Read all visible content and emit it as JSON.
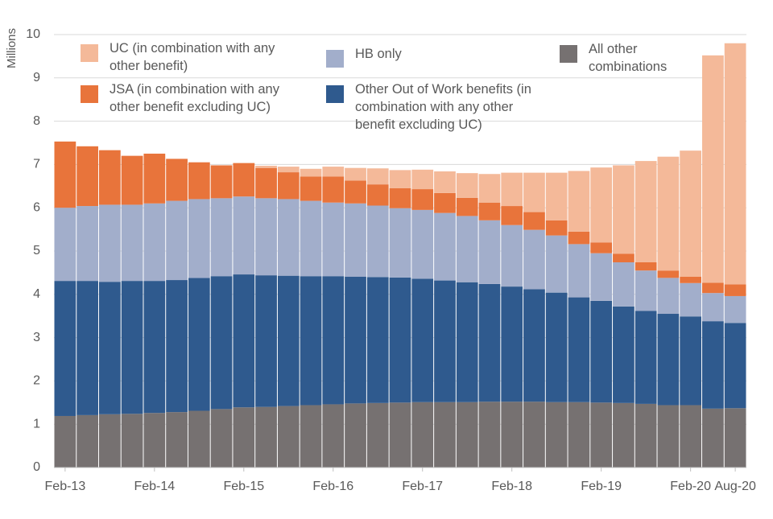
{
  "chart_data": {
    "type": "stacked-bar",
    "y_label": "Millions",
    "categories": [
      "Feb-13",
      null,
      null,
      null,
      "Feb-14",
      null,
      null,
      null,
      "Feb-15",
      null,
      null,
      null,
      "Feb-16",
      null,
      null,
      null,
      "Feb-17",
      null,
      null,
      null,
      "Feb-18",
      null,
      null,
      null,
      "Feb-19",
      null,
      null,
      null,
      "Feb-20",
      null,
      "Aug-20"
    ],
    "series": [
      {
        "name": "All other combinations",
        "color": "#767171",
        "values": [
          1.19,
          1.21,
          1.23,
          1.24,
          1.26,
          1.28,
          1.31,
          1.35,
          1.39,
          1.4,
          1.42,
          1.44,
          1.46,
          1.48,
          1.49,
          1.5,
          1.51,
          1.51,
          1.51,
          1.52,
          1.52,
          1.52,
          1.51,
          1.51,
          1.5,
          1.49,
          1.47,
          1.44,
          1.44,
          1.36,
          1.37
        ]
      },
      {
        "name": "Other Out of Work benefits (in combination with any other benefit excluding UC)",
        "color": "#2f5a8e",
        "values": [
          3.12,
          3.1,
          3.06,
          3.07,
          3.05,
          3.05,
          3.07,
          3.07,
          3.07,
          3.04,
          3.01,
          2.98,
          2.96,
          2.93,
          2.91,
          2.89,
          2.85,
          2.81,
          2.77,
          2.72,
          2.66,
          2.6,
          2.53,
          2.42,
          2.35,
          2.23,
          2.15,
          2.11,
          2.05,
          2.02,
          1.97
        ]
      },
      {
        "name": "HB only",
        "color": "#a2aecb",
        "values": [
          1.69,
          1.73,
          1.78,
          1.76,
          1.79,
          1.83,
          1.82,
          1.8,
          1.8,
          1.78,
          1.77,
          1.74,
          1.7,
          1.69,
          1.65,
          1.6,
          1.59,
          1.56,
          1.53,
          1.47,
          1.42,
          1.37,
          1.32,
          1.23,
          1.1,
          1.02,
          0.93,
          0.83,
          0.77,
          0.65,
          0.62
        ]
      },
      {
        "name": "JSA (in combination with any other benefit excluding UC)",
        "color": "#e8743b",
        "values": [
          1.53,
          1.38,
          1.26,
          1.13,
          1.15,
          0.97,
          0.85,
          0.76,
          0.77,
          0.7,
          0.62,
          0.56,
          0.6,
          0.53,
          0.49,
          0.46,
          0.48,
          0.46,
          0.42,
          0.41,
          0.44,
          0.41,
          0.35,
          0.29,
          0.25,
          0.2,
          0.19,
          0.17,
          0.15,
          0.24,
          0.27
        ]
      },
      {
        "name": "UC (in combination with any other benefit)",
        "color": "#f4b999",
        "values": [
          0,
          0,
          0,
          0,
          0,
          0,
          0,
          0,
          0.01,
          0.05,
          0.13,
          0.18,
          0.23,
          0.29,
          0.37,
          0.42,
          0.45,
          0.5,
          0.57,
          0.66,
          0.77,
          0.91,
          1.1,
          1.4,
          1.73,
          2.04,
          2.34,
          2.63,
          2.91,
          5.25,
          5.57
        ]
      }
    ],
    "ylim": [
      0,
      10
    ],
    "yticks": [
      0,
      1,
      2,
      3,
      4,
      5,
      6,
      7,
      8,
      9,
      10
    ],
    "grid": true
  }
}
